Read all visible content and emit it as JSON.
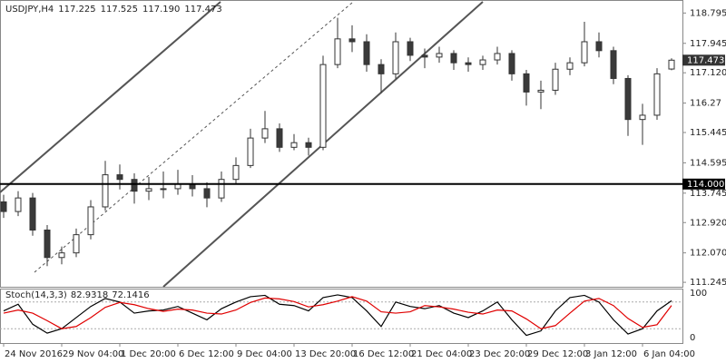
{
  "chart_data": {
    "type": "candlestick",
    "header": {
      "symbol": "USDJPY,H4",
      "ohlc": [
        "117.225",
        "117.525",
        "117.190",
        "117.473"
      ]
    },
    "categories": [
      "24 Nov 2016",
      null,
      null,
      null,
      "29 Nov 04:00",
      null,
      null,
      null,
      "1 Dec 20:00",
      null,
      null,
      null,
      "6 Dec 12:00",
      null,
      null,
      null,
      "9 Dec 04:00",
      null,
      null,
      null,
      "13 Dec 20:00",
      null,
      null,
      null,
      "16 Dec 12:00",
      null,
      null,
      null,
      "21 Dec 04:00",
      null,
      null,
      null,
      "23 Dec 20:00",
      null,
      null,
      null,
      "29 Dec 12:00",
      null,
      null,
      null,
      "3 Jan 12:00",
      null,
      null,
      null,
      "6 Jan 04:00",
      null,
      null
    ],
    "open": [
      113.5,
      113.23,
      113.61,
      112.71,
      111.94,
      112.07,
      112.58,
      113.36,
      114.26,
      114.13,
      113.8,
      113.87,
      113.87,
      114.0,
      113.87,
      113.61,
      114.13,
      114.52,
      115.29,
      115.55,
      115.03,
      115.16,
      115.03,
      117.35,
      118.07,
      117.99,
      117.35,
      117.09,
      117.99,
      117.61,
      117.56,
      117.66,
      117.4,
      117.35,
      117.48,
      117.66,
      117.09,
      116.58,
      116.63,
      117.22,
      117.4,
      117.99,
      117.74,
      116.96,
      115.81,
      115.93,
      117.225
    ],
    "high": [
      113.7,
      113.8,
      113.75,
      112.85,
      112.25,
      112.75,
      113.55,
      114.65,
      114.55,
      114.3,
      114.2,
      114.35,
      114.4,
      114.25,
      114.05,
      114.35,
      114.75,
      115.55,
      116.05,
      115.7,
      115.4,
      115.3,
      117.6,
      118.66,
      118.45,
      118.2,
      117.5,
      118.25,
      118.1,
      117.8,
      117.85,
      117.75,
      117.55,
      117.6,
      117.85,
      117.75,
      117.2,
      116.9,
      117.4,
      117.55,
      118.55,
      118.25,
      117.85,
      117.05,
      116.25,
      117.25,
      117.525
    ],
    "low": [
      113.05,
      113.1,
      112.55,
      111.7,
      111.75,
      111.95,
      112.45,
      113.25,
      113.85,
      113.45,
      113.55,
      113.6,
      113.7,
      113.65,
      113.35,
      113.5,
      114.0,
      114.45,
      115.15,
      114.9,
      114.95,
      114.8,
      114.95,
      117.25,
      117.7,
      117.15,
      116.55,
      116.95,
      117.45,
      117.25,
      117.4,
      117.2,
      117.15,
      117.2,
      117.35,
      116.9,
      116.2,
      116.1,
      116.5,
      117.05,
      117.3,
      117.55,
      116.8,
      115.35,
      115.1,
      115.8,
      117.19
    ],
    "close": [
      113.23,
      113.61,
      112.71,
      111.94,
      112.07,
      112.58,
      113.36,
      114.26,
      114.13,
      113.8,
      113.87,
      113.87,
      114.0,
      113.87,
      113.61,
      114.13,
      114.52,
      115.29,
      115.55,
      115.03,
      115.16,
      115.03,
      117.35,
      118.07,
      117.99,
      117.35,
      117.09,
      117.99,
      117.61,
      117.56,
      117.66,
      117.4,
      117.35,
      117.48,
      117.66,
      117.09,
      116.58,
      116.63,
      117.22,
      117.4,
      117.99,
      117.74,
      116.96,
      115.81,
      115.93,
      117.09,
      117.473
    ],
    "up_color": "#ffffff",
    "down_color": "#3a3a3a",
    "ylim": [
      111.12,
      119.16
    ],
    "yticks": [
      118.795,
      117.945,
      {
        "value": 117.12,
        "label": "117.120"
      },
      116.27,
      115.445,
      114.595,
      113.745,
      {
        "value": 112.92,
        "label": "112.920"
      },
      {
        "value": 112.07,
        "label": "112.070"
      },
      111.245
    ],
    "hline": {
      "value": 114,
      "label": "114.000"
    },
    "indicator": {
      "name": "Stoch(14,3,3)",
      "ylim": [
        0,
        100
      ],
      "yticks": [
        0,
        100
      ],
      "levels": [
        20,
        80
      ],
      "series": [
        {
          "name": "main",
          "color": "#000000",
          "values": [
            60,
            75,
            30,
            10,
            20,
            45,
            70,
            88,
            80,
            55,
            60,
            62,
            70,
            55,
            40,
            65,
            80,
            92,
            95,
            75,
            72,
            60,
            90,
            96,
            90,
            60,
            25,
            80,
            70,
            65,
            72,
            55,
            45,
            60,
            80,
            40,
            5,
            15,
            60,
            90,
            95,
            80,
            40,
            8,
            20,
            60,
            82.9318
          ]
        },
        {
          "name": "signal",
          "color": "#e00000",
          "values": [
            55,
            62,
            55,
            38,
            20,
            25,
            45,
            68,
            79,
            74,
            65,
            59,
            64,
            62,
            55,
            53,
            62,
            79,
            89,
            87,
            81,
            69,
            74,
            82,
            92,
            82,
            58,
            55,
            58,
            72,
            69,
            64,
            57,
            53,
            62,
            60,
            42,
            20,
            27,
            55,
            82,
            88,
            72,
            43,
            23,
            29,
            72.1416
          ]
        }
      ]
    }
  }
}
